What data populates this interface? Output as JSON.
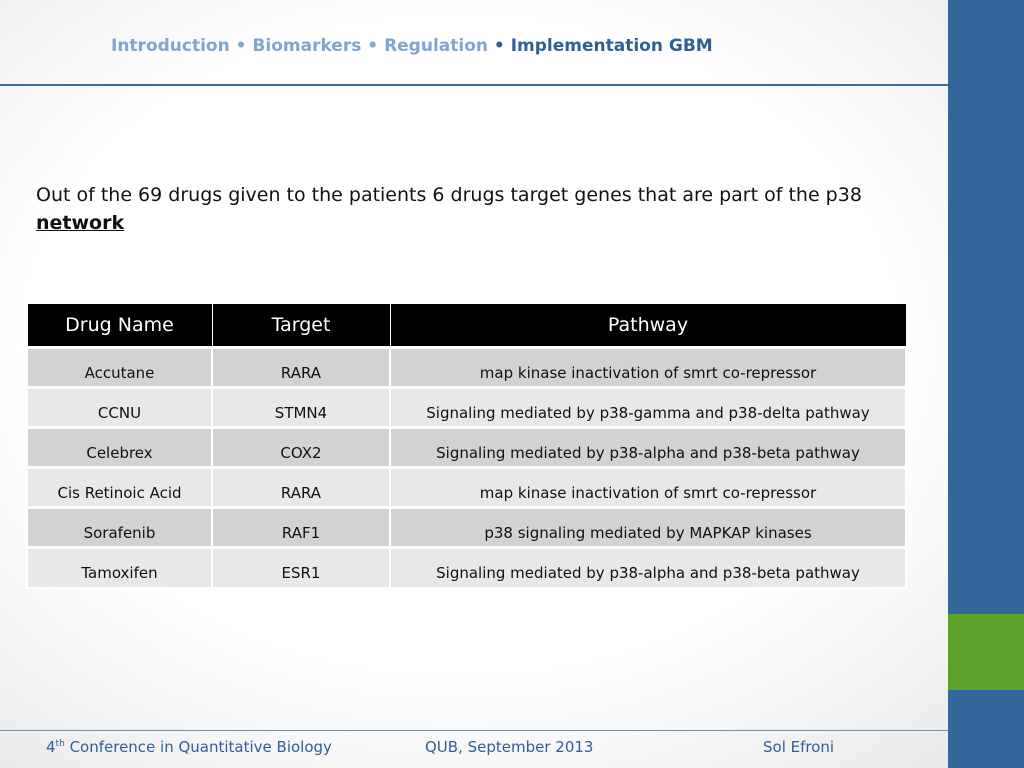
{
  "header": {
    "breadcrumb": [
      "Introduction",
      "Biomarkers",
      "Regulation",
      "Implementation GBM"
    ],
    "separator": "•"
  },
  "intro": {
    "text": "Out of the 69 drugs given to the patients 6 drugs target genes that are part of the p38",
    "emphasis": "network"
  },
  "table": {
    "columns": [
      "Drug Name",
      "Target",
      "Pathway"
    ],
    "rows": [
      [
        "Accutane",
        "RARA",
        "map kinase inactivation of smrt co-repressor"
      ],
      [
        "CCNU",
        "STMN4",
        "Signaling mediated by p38-gamma and p38-delta pathway"
      ],
      [
        "Celebrex",
        "COX2",
        "Signaling mediated by p38-alpha and p38-beta pathway"
      ],
      [
        "Cis Retinoic Acid",
        "RARA",
        "map kinase inactivation of smrt co-repressor"
      ],
      [
        "Sorafenib",
        "RAF1",
        "p38 signaling mediated by MAPKAP kinases"
      ],
      [
        "Tamoxifen",
        "ESR1",
        "Signaling mediated by p38-alpha and p38-beta pathway"
      ]
    ]
  },
  "footer": {
    "conference": {
      "number": "4",
      "suffix": "th",
      "name": "Conference in Quantitative Biology"
    },
    "venue": "QUB, September 2013",
    "author": "Sol Efroni"
  }
}
